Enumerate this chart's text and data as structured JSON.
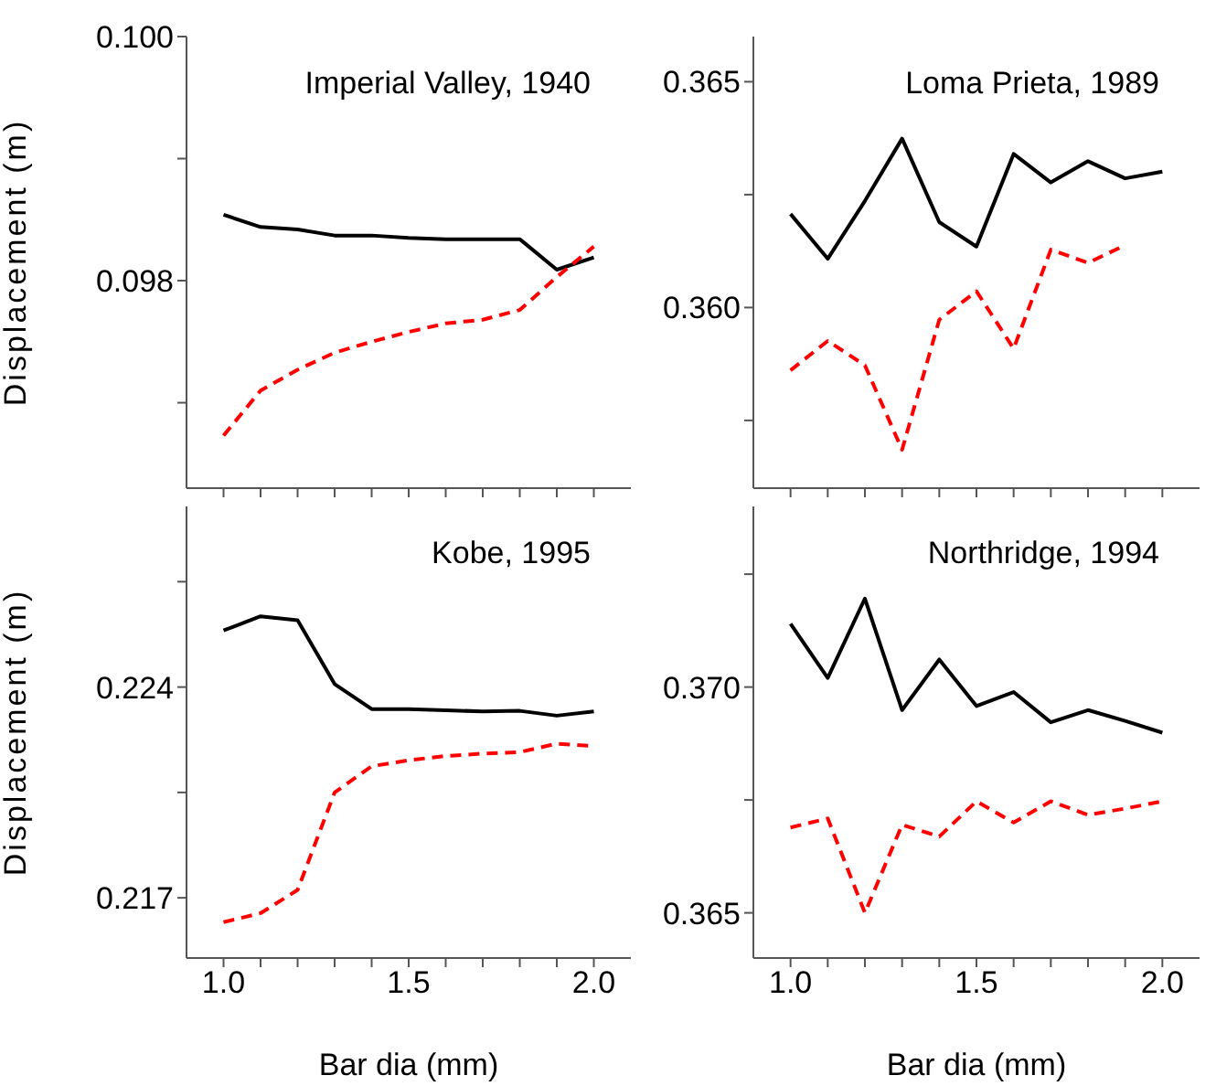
{
  "chart_data": [
    {
      "type": "line",
      "title": "Imperial Valley, 1940",
      "ylabel": "Displacement (m)",
      "x": [
        1.0,
        1.1,
        1.2,
        1.3,
        1.4,
        1.5,
        1.6,
        1.7,
        1.8,
        1.9,
        2.0
      ],
      "marker": "none",
      "tick_labels": "y",
      "xlim": [
        0.9,
        2.1
      ],
      "xticks": [
        {
          "value": 1.0,
          "label": null
        },
        {
          "value": 1.1,
          "label": null
        },
        {
          "value": 1.2,
          "label": null
        },
        {
          "value": 1.3,
          "label": null
        },
        {
          "value": 1.4,
          "label": null
        },
        {
          "value": 1.5,
          "label": null
        },
        {
          "value": 1.6,
          "label": null
        },
        {
          "value": 1.7,
          "label": null
        },
        {
          "value": 1.8,
          "label": null
        },
        {
          "value": 1.9,
          "label": null
        },
        {
          "value": 2.0,
          "label": null
        }
      ],
      "ylim": [
        0.0963,
        0.1
      ],
      "yticks": [
        {
          "value": 0.097,
          "label": null
        },
        0.098,
        {
          "value": 0.099,
          "label": null
        },
        {
          "value": 0.1,
          "label": "0.100"
        }
      ],
      "series": [
        {
          "color": "#000000",
          "line_style": "solid",
          "values": [
            0.09854,
            0.09844,
            0.09842,
            0.09837,
            0.09837,
            0.09835,
            0.09834,
            0.09834,
            0.09834,
            0.09809,
            0.09819
          ]
        },
        {
          "color": "#ff0000",
          "line_style": "dashed",
          "values": [
            0.09673,
            0.0971,
            0.09727,
            0.09741,
            0.0975,
            0.09758,
            0.09765,
            0.09768,
            0.09776,
            0.09803,
            0.09828
          ]
        }
      ]
    },
    {
      "type": "line",
      "title": "Loma Prieta, 1989",
      "x": [
        1.0,
        1.1,
        1.2,
        1.3,
        1.4,
        1.5,
        1.6,
        1.7,
        1.8,
        1.9,
        2.0
      ],
      "marker": "none",
      "tick_labels": "y",
      "xlim": [
        0.9,
        2.1
      ],
      "xticks": [
        {
          "value": 1.0,
          "label": null
        },
        {
          "value": 1.1,
          "label": null
        },
        {
          "value": 1.2,
          "label": null
        },
        {
          "value": 1.3,
          "label": null
        },
        {
          "value": 1.4,
          "label": null
        },
        {
          "value": 1.5,
          "label": null
        },
        {
          "value": 1.6,
          "label": null
        },
        {
          "value": 1.7,
          "label": null
        },
        {
          "value": 1.8,
          "label": null
        },
        {
          "value": 1.9,
          "label": null
        },
        {
          "value": 2.0,
          "label": null
        }
      ],
      "ylim": [
        0.356,
        0.366
      ],
      "yticks": [
        {
          "value": 0.3575,
          "label": null
        },
        {
          "value": 0.36,
          "label": "0.360"
        },
        {
          "value": 0.3625,
          "label": null
        },
        0.365
      ],
      "series": [
        {
          "color": "#000000",
          "line_style": "solid",
          "values": [
            0.36207,
            0.36108,
            0.36236,
            0.36374,
            0.36189,
            0.36135,
            0.3634,
            0.36277,
            0.36324,
            0.36286,
            0.36301
          ]
        },
        {
          "color": "#ff0000",
          "line_style": "dashed",
          "values": [
            0.35861,
            0.35926,
            0.35872,
            0.35685,
            0.35973,
            0.36036,
            0.35909,
            0.36128,
            0.36099,
            0.36138,
            null
          ]
        }
      ]
    },
    {
      "type": "line",
      "title": "Kobe, 1995",
      "ylabel": "Displacement (m)",
      "xlabel": "Bar dia (mm)",
      "x": [
        1.0,
        1.1,
        1.2,
        1.3,
        1.4,
        1.5,
        1.6,
        1.7,
        1.8,
        1.9,
        2.0
      ],
      "marker": "none",
      "xlim": [
        0.9,
        2.1
      ],
      "xticks": [
        {
          "value": 1.0,
          "label": "1.0"
        },
        {
          "value": 1.1,
          "label": null
        },
        {
          "value": 1.2,
          "label": null
        },
        {
          "value": 1.3,
          "label": null
        },
        {
          "value": 1.4,
          "label": null
        },
        {
          "value": 1.5,
          "label": "1.5"
        },
        {
          "value": 1.6,
          "label": null
        },
        {
          "value": 1.7,
          "label": null
        },
        {
          "value": 1.8,
          "label": null
        },
        {
          "value": 1.9,
          "label": null
        },
        {
          "value": 2.0,
          "label": "2.0"
        }
      ],
      "ylim": [
        0.215,
        0.23
      ],
      "yticks": [
        0.217,
        {
          "value": 0.2205,
          "label": null
        },
        0.224,
        {
          "value": 0.2275,
          "label": null
        }
      ],
      "series": [
        {
          "color": "#000000",
          "line_style": "solid",
          "values": [
            0.22588,
            0.22635,
            0.22622,
            0.2241,
            0.22327,
            0.22327,
            0.22323,
            0.22319,
            0.22321,
            0.22305,
            0.22319
          ]
        },
        {
          "color": "#ff0000",
          "line_style": "dashed",
          "values": [
            0.21619,
            0.21649,
            0.21726,
            0.2205,
            0.22137,
            0.22157,
            0.22171,
            0.22179,
            0.22184,
            0.22212,
            0.22204
          ]
        }
      ]
    },
    {
      "type": "line",
      "title": "Northridge, 1994",
      "xlabel": "Bar dia (mm)",
      "x": [
        1.0,
        1.1,
        1.2,
        1.3,
        1.4,
        1.5,
        1.6,
        1.7,
        1.8,
        1.9,
        2.0
      ],
      "marker": "none",
      "xlim": [
        0.9,
        2.1
      ],
      "xticks": [
        {
          "value": 1.0,
          "label": "1.0"
        },
        {
          "value": 1.1,
          "label": null
        },
        {
          "value": 1.2,
          "label": null
        },
        {
          "value": 1.3,
          "label": null
        },
        {
          "value": 1.4,
          "label": null
        },
        {
          "value": 1.5,
          "label": "1.5"
        },
        {
          "value": 1.6,
          "label": null
        },
        {
          "value": 1.7,
          "label": null
        },
        {
          "value": 1.8,
          "label": null
        },
        {
          "value": 1.9,
          "label": null
        },
        {
          "value": 2.0,
          "label": "2.0"
        }
      ],
      "ylim": [
        0.364,
        0.374
      ],
      "yticks": [
        {
          "value": 0.365,
          "label": "0.365"
        },
        {
          "value": 0.3675,
          "label": null
        },
        {
          "value": 0.37,
          "label": "0.370"
        },
        {
          "value": 0.3725,
          "label": null
        }
      ],
      "series": [
        {
          "color": "#000000",
          "line_style": "solid",
          "values": [
            0.3714,
            0.3702,
            0.37196,
            0.36949,
            0.37061,
            0.36958,
            0.36989,
            0.36922,
            0.36949,
            0.36925,
            0.36899
          ]
        },
        {
          "color": "#ff0000",
          "line_style": "dashed",
          "values": [
            0.36689,
            0.36709,
            0.365,
            0.36695,
            0.36669,
            0.36747,
            0.367,
            0.36747,
            0.36717,
            0.36731,
            0.36747
          ]
        }
      ]
    }
  ]
}
